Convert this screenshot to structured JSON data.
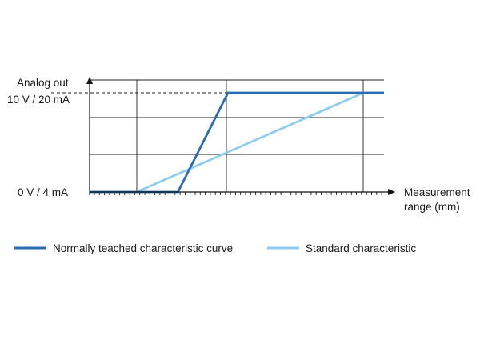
{
  "chart_data": {
    "type": "line",
    "ylabel_line1": "Analog out",
    "y_ticks": [
      {
        "label": "10 V / 20 mA",
        "value": 1
      },
      {
        "label": "0 V / 4 mA",
        "value": 0
      }
    ],
    "xlabel_line1": "Measurement",
    "xlabel_line2": "range (mm)",
    "xlim": [
      0,
      100
    ],
    "ylim": [
      0,
      1.24
    ],
    "grid": true,
    "legend_position": "bottom",
    "series": [
      {
        "name": "Normally teached characteristic curve",
        "color": "#2a6db5",
        "x": [
          0,
          30,
          47,
          100
        ],
        "y": [
          0,
          0,
          1,
          1
        ]
      },
      {
        "name": "Standard characteristic",
        "color": "#8fcdf0",
        "x": [
          0,
          16,
          93,
          100
        ],
        "y": [
          0,
          0,
          1,
          1
        ]
      }
    ]
  }
}
